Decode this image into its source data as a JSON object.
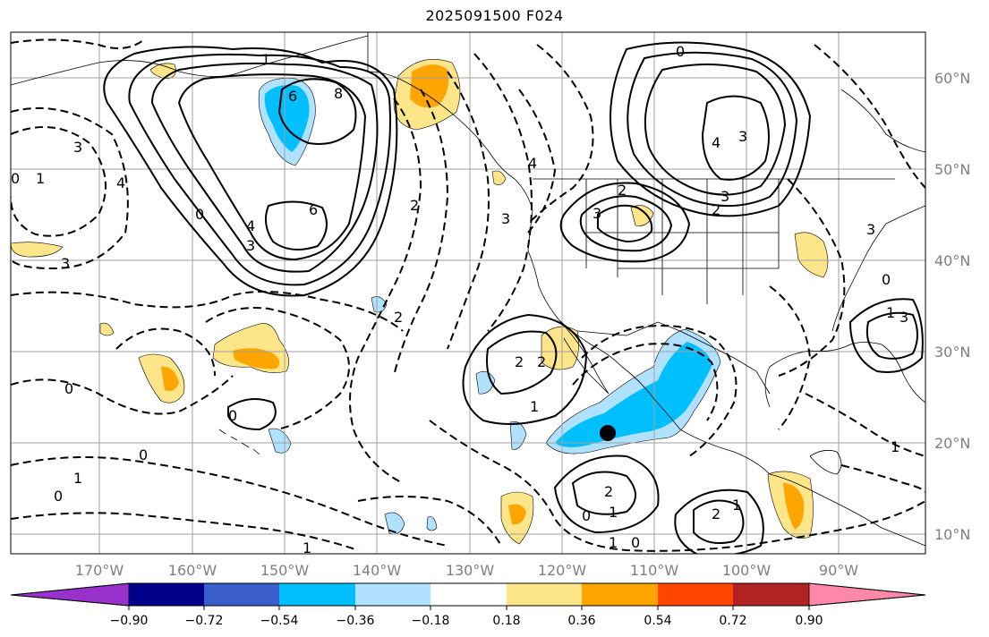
{
  "title": "2025091500 F024",
  "map": {
    "lon_labels": [
      "170°W",
      "160°W",
      "150°W",
      "140°W",
      "130°W",
      "120°W",
      "110°W",
      "100°W",
      "90°W"
    ],
    "lat_labels": [
      "60°N",
      "50°N",
      "40°N",
      "30°N",
      "20°N",
      "10°N"
    ],
    "contour_labels": [
      "1",
      "6",
      "8",
      "4",
      "6",
      "3",
      "0",
      "3",
      "0",
      "1",
      "3",
      "4",
      "0",
      "2",
      "2",
      "2",
      "0",
      "2",
      "1",
      "2",
      "1",
      "2",
      "0",
      "1",
      "2",
      "1",
      "0",
      "4",
      "4",
      "3",
      "2",
      "3",
      "0",
      "3",
      "0",
      "1",
      "3",
      "0",
      "1",
      "0",
      "1",
      "3",
      "3",
      "1"
    ],
    "marker": "black-dot",
    "colors": {
      "gridline": "#a0a0a0",
      "contour": "#000000",
      "coast": "#000000"
    }
  },
  "colorbar": {
    "tick_labels": [
      "−0.90",
      "−0.72",
      "−0.54",
      "−0.36",
      "−0.18",
      "0.18",
      "0.36",
      "0.54",
      "0.72",
      "0.90"
    ],
    "colors": [
      "#9932cc",
      "#00008b",
      "#3a5fcd",
      "#00bfff",
      "#b0e2ff",
      "#ffffff",
      "#fde68a",
      "#ffa500",
      "#ff4500",
      "#b22222",
      "#ff88aa"
    ]
  }
}
